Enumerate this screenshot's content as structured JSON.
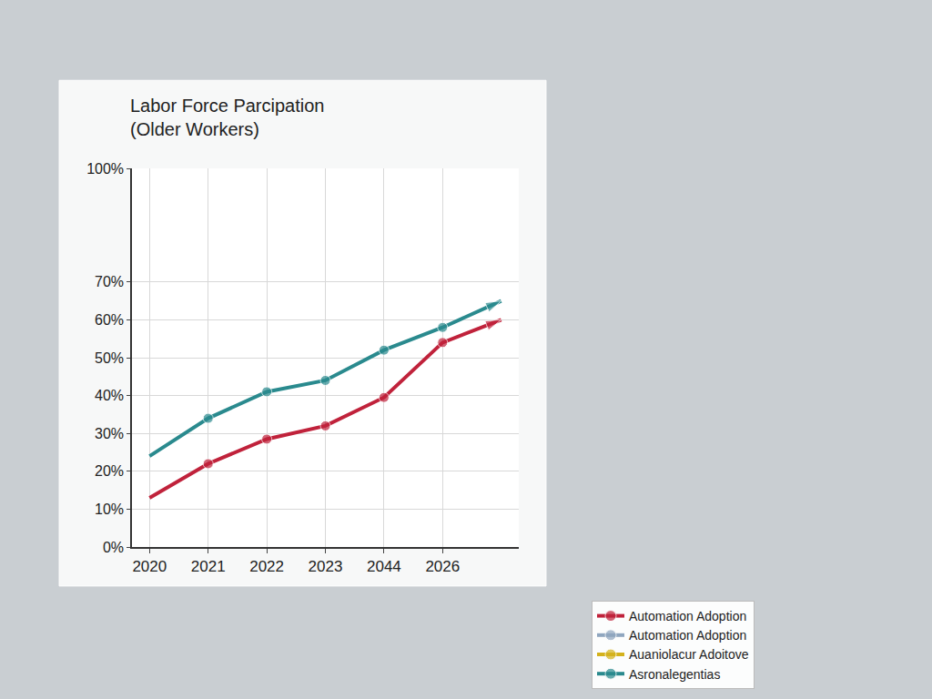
{
  "chart_data": {
    "type": "line",
    "title": "Labor Force Parcipation\n(Older Workers)",
    "categories": [
      "2020",
      "2021",
      "2022",
      "2023",
      "2044",
      "2026",
      null
    ],
    "series": [
      {
        "name": "Automation Adoption",
        "color": "#c0223b",
        "values": [
          13,
          22,
          28.5,
          32,
          39.5,
          54,
          60
        ]
      },
      {
        "name": "Automation Adoption",
        "color": "#8fa6bf",
        "values": [
          null,
          null,
          null,
          null,
          null,
          null,
          null
        ]
      },
      {
        "name": "Auaniolacur Adoitove",
        "color": "#d4b21c",
        "values": [
          null,
          null,
          null,
          null,
          null,
          null,
          null
        ]
      },
      {
        "name": "Asronalegentias",
        "color": "#2a8a8e",
        "values": [
          24,
          34,
          41,
          44,
          52,
          58,
          65
        ]
      }
    ],
    "ylim": [
      0,
      100
    ],
    "yticks": [
      {
        "value": 0,
        "label": "0%"
      },
      {
        "value": 10,
        "label": "10%"
      },
      {
        "value": 20,
        "label": "20%"
      },
      {
        "value": 30,
        "label": "30%"
      },
      {
        "value": 40,
        "label": "40%"
      },
      {
        "value": 50,
        "label": "50%"
      },
      {
        "value": 60,
        "label": "60%"
      },
      {
        "value": 70,
        "label": "70%"
      },
      {
        "value": 100,
        "label": "100%"
      }
    ],
    "grid": true,
    "legend": "bottom right",
    "marker": "circle"
  }
}
